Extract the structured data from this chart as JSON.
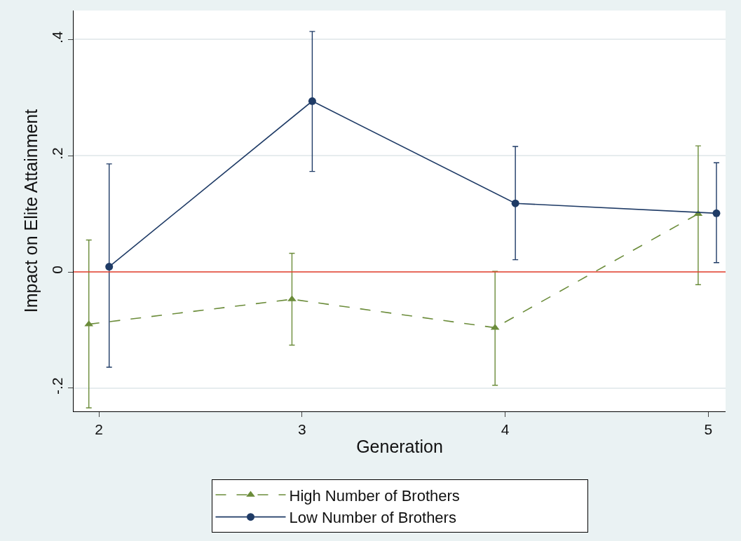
{
  "chart_data": {
    "type": "line",
    "xlabel": "Generation",
    "ylabel": "Impact on Elite Attainment",
    "xlim": [
      1.875,
      5.085
    ],
    "xticks": [
      2,
      3,
      4,
      5
    ],
    "ylim": [
      -0.24,
      0.45
    ],
    "yticks": [
      {
        "value": -0.2,
        "label": "-.2"
      },
      {
        "value": 0,
        "label": "0"
      },
      {
        "value": 0.2,
        "label": ".2"
      },
      {
        "value": 0.4,
        "label": ".4"
      }
    ],
    "grid": "y",
    "legend": "bottom",
    "series": [
      {
        "name": "High Number of Brothers",
        "color": "#6b8c3a",
        "marker": "triangle",
        "line_style": "dashed",
        "x": [
          1.95,
          2.95,
          3.95,
          4.95
        ],
        "values": [
          -0.09,
          -0.047,
          -0.096,
          0.1
        ],
        "errors": [
          [
            -0.234,
            0.055
          ],
          [
            -0.126,
            0.032
          ],
          [
            -0.195,
            0.001
          ],
          [
            -0.022,
            0.217
          ]
        ]
      },
      {
        "name": "Low Number of Brothers",
        "color": "#1f3b66",
        "marker": "circle",
        "line_style": "solid",
        "x": [
          2.05,
          3.05,
          4.05,
          5.04
        ],
        "values": [
          0.009,
          0.294,
          0.118,
          0.101
        ],
        "errors": [
          [
            -0.164,
            0.186
          ],
          [
            0.173,
            0.414
          ],
          [
            0.021,
            0.216
          ],
          [
            0.016,
            0.188
          ]
        ]
      }
    ],
    "ref_lines": [
      {
        "axis": "y",
        "value": 0,
        "color": "#e8412c"
      }
    ]
  }
}
